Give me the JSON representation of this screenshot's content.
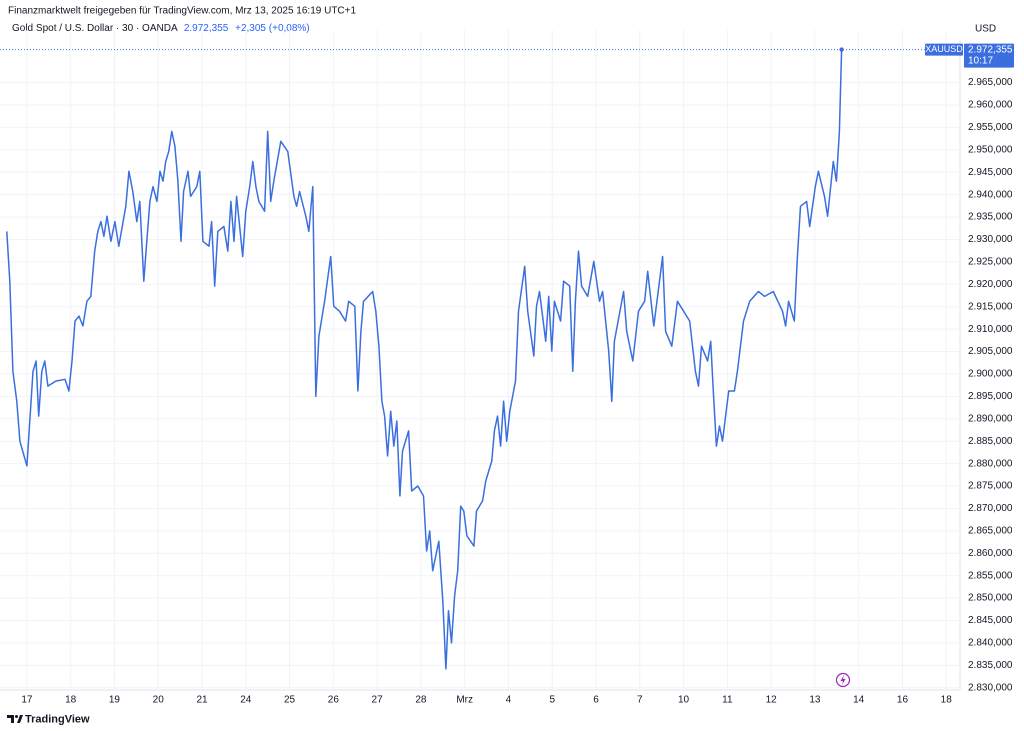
{
  "header": {
    "credit": "Finanzmarktwelt freigegeben für TradingView.com, Mrz 13, 2025 16:19 UTC+1",
    "symbol": "Gold Spot / U.S. Dollar · 30 · OANDA",
    "price": "2.972,355",
    "change": "+2,305 (+0,08%)"
  },
  "chart_data": {
    "type": "line",
    "y_label": "USD",
    "grid": true,
    "xlim": [
      -0.5,
      21.2
    ],
    "xticks": [
      {
        "value": 0,
        "label": "17"
      },
      {
        "value": 1,
        "label": "18"
      },
      {
        "value": 2,
        "label": "19"
      },
      {
        "value": 3,
        "label": "20"
      },
      {
        "value": 4,
        "label": "21"
      },
      {
        "value": 5,
        "label": "24"
      },
      {
        "value": 6,
        "label": "25"
      },
      {
        "value": 7,
        "label": "26"
      },
      {
        "value": 8,
        "label": "27"
      },
      {
        "value": 9,
        "label": "28"
      },
      {
        "value": 10,
        "label": "Mrz"
      },
      {
        "value": 11,
        "label": "4"
      },
      {
        "value": 12,
        "label": "5"
      },
      {
        "value": 13,
        "label": "6"
      },
      {
        "value": 14,
        "label": "7"
      },
      {
        "value": 15,
        "label": "10"
      },
      {
        "value": 16,
        "label": "11"
      },
      {
        "value": 17,
        "label": "12"
      },
      {
        "value": 18,
        "label": "13"
      },
      {
        "value": 19,
        "label": "14"
      },
      {
        "value": 20,
        "label": "16"
      },
      {
        "value": 21,
        "label": "18"
      }
    ],
    "ylim": [
      2829.5,
      2974.5
    ],
    "yticks": [
      {
        "value": 2830,
        "label": "2.830,000"
      },
      {
        "value": 2835,
        "label": "2.835,000"
      },
      {
        "value": 2840,
        "label": "2.840,000"
      },
      {
        "value": 2845,
        "label": "2.845,000"
      },
      {
        "value": 2850,
        "label": "2.850,000"
      },
      {
        "value": 2855,
        "label": "2.855,000"
      },
      {
        "value": 2860,
        "label": "2.860,000"
      },
      {
        "value": 2865,
        "label": "2.865,000"
      },
      {
        "value": 2870,
        "label": "2.870,000"
      },
      {
        "value": 2875,
        "label": "2.875,000"
      },
      {
        "value": 2880,
        "label": "2.880,000"
      },
      {
        "value": 2885,
        "label": "2.885,000"
      },
      {
        "value": 2890,
        "label": "2.890,000"
      },
      {
        "value": 2895,
        "label": "2.895,000"
      },
      {
        "value": 2900,
        "label": "2.900,000"
      },
      {
        "value": 2905,
        "label": "2.905,000"
      },
      {
        "value": 2910,
        "label": "2.910,000"
      },
      {
        "value": 2915,
        "label": "2.915,000"
      },
      {
        "value": 2920,
        "label": "2.920,000"
      },
      {
        "value": 2925,
        "label": "2.925,000"
      },
      {
        "value": 2930,
        "label": "2.930,000"
      },
      {
        "value": 2935,
        "label": "2.935,000"
      },
      {
        "value": 2940,
        "label": "2.940,000"
      },
      {
        "value": 2945,
        "label": "2.945,000"
      },
      {
        "value": 2950,
        "label": "2.950,000"
      },
      {
        "value": 2955,
        "label": "2.955,000"
      },
      {
        "value": 2960,
        "label": "2.960,000"
      },
      {
        "value": 2965,
        "label": "2.965,000"
      }
    ],
    "last_price": {
      "value": 2972.355,
      "label": "2.972,355"
    },
    "countdown": "10:17",
    "series": [
      {
        "name": "XAUUSD",
        "color": "#3b6fe0",
        "x": [
          -0.46,
          -0.39,
          -0.32,
          -0.23,
          -0.16,
          0,
          0.14,
          0.21,
          0.27,
          0.34,
          0.41,
          0.48,
          0.66,
          0.87,
          0.96,
          1.03,
          1.1,
          1.19,
          1.28,
          1.37,
          1.46,
          1.55,
          1.62,
          1.69,
          1.76,
          1.83,
          1.92,
          2.01,
          2.1,
          2.26,
          2.33,
          2.42,
          2.51,
          2.58,
          2.67,
          2.74,
          2.81,
          2.88,
          2.97,
          3.04,
          3.11,
          3.17,
          3.24,
          3.31,
          3.38,
          3.45,
          3.52,
          3.58,
          3.68,
          3.74,
          3.88,
          3.95,
          4.02,
          4.16,
          4.22,
          4.29,
          4.36,
          4.5,
          4.59,
          4.66,
          4.73,
          4.79,
          4.93,
          5,
          5.09,
          5.16,
          5.23,
          5.3,
          5.43,
          5.5,
          5.57,
          5.64,
          5.8,
          5.96,
          6.1,
          6.16,
          6.23,
          6.37,
          6.44,
          6.53,
          6.6,
          6.67,
          6.8,
          6.94,
          7.01,
          7.14,
          7.28,
          7.35,
          7.49,
          7.56,
          7.63,
          7.69,
          7.9,
          7.97,
          8.04,
          8.11,
          8.17,
          8.24,
          8.31,
          8.38,
          8.45,
          8.52,
          8.58,
          8.72,
          8.79,
          8.93,
          9.06,
          9.13,
          9.2,
          9.27,
          9.41,
          9.5,
          9.57,
          9.63,
          9.7,
          9.77,
          9.84,
          9.91,
          9.98,
          10.05,
          10.21,
          10.27,
          10.41,
          10.48,
          10.62,
          10.68,
          10.75,
          10.82,
          10.89,
          10.96,
          11.03,
          11.16,
          11.23,
          11.37,
          11.44,
          11.58,
          11.64,
          11.71,
          11.85,
          11.92,
          11.99,
          12.05,
          12.19,
          12.26,
          12.4,
          12.47,
          12.53,
          12.6,
          12.67,
          12.81,
          12.95,
          13.08,
          13.15,
          13.29,
          13.36,
          13.42,
          13.63,
          13.7,
          13.84,
          13.97,
          14.11,
          14.18,
          14.32,
          14.45,
          14.52,
          14.59,
          14.73,
          14.86,
          15,
          15.14,
          15.27,
          15.34,
          15.41,
          15.55,
          15.62,
          15.68,
          15.75,
          15.82,
          15.89,
          16.03,
          16.16,
          16.23,
          16.37,
          16.51,
          16.71,
          16.85,
          17.05,
          17.26,
          17.33,
          17.4,
          17.53,
          17.6,
          17.67,
          17.81,
          17.88,
          18.01,
          18.08,
          18.22,
          18.29,
          18.42,
          18.49,
          18.56,
          18.61
        ],
        "values": [
          2931.8,
          2920.7,
          2900.6,
          2893.9,
          2885,
          2879.5,
          2900.6,
          2902.9,
          2890.6,
          2900.6,
          2902.9,
          2897.3,
          2898.4,
          2898.8,
          2896.2,
          2902.9,
          2911.8,
          2912.9,
          2910.7,
          2916.2,
          2917.3,
          2927.4,
          2931.8,
          2934,
          2930.7,
          2935.2,
          2929.6,
          2934,
          2928.5,
          2937.4,
          2945.2,
          2940.7,
          2934,
          2938.5,
          2920.7,
          2929.6,
          2938.5,
          2941.8,
          2938.5,
          2945.2,
          2943,
          2947.4,
          2949.6,
          2954.1,
          2950.8,
          2943,
          2929.6,
          2940.7,
          2945.2,
          2939.6,
          2941.8,
          2945.2,
          2929.6,
          2928.5,
          2934,
          2919.6,
          2931.8,
          2932.9,
          2927.4,
          2938.5,
          2929.6,
          2939.6,
          2926.2,
          2936.3,
          2941.8,
          2947.4,
          2941.8,
          2938.5,
          2936.3,
          2954.1,
          2938.5,
          2943,
          2951.9,
          2949.6,
          2939.6,
          2937.4,
          2940.7,
          2935.2,
          2931.8,
          2941.8,
          2895,
          2908.4,
          2916.2,
          2926.2,
          2915.1,
          2914,
          2911.8,
          2916.2,
          2915.1,
          2896.2,
          2909.5,
          2916.2,
          2918.4,
          2914,
          2906.2,
          2893.9,
          2890.6,
          2881.7,
          2891.7,
          2883.9,
          2889.5,
          2872.8,
          2882.8,
          2887.3,
          2873.9,
          2875,
          2872.8,
          2860.5,
          2865,
          2856.1,
          2862.7,
          2849.4,
          2834.2,
          2847.2,
          2840,
          2850.5,
          2856.1,
          2870.5,
          2869.4,
          2863.9,
          2861.6,
          2869.4,
          2871.7,
          2876.1,
          2880.6,
          2887.3,
          2890.6,
          2883.9,
          2893.9,
          2885,
          2891.7,
          2898.4,
          2914,
          2924,
          2914,
          2904,
          2915.1,
          2918.4,
          2907.3,
          2917.3,
          2905.1,
          2916.2,
          2911.8,
          2920.7,
          2919.6,
          2900.6,
          2916.2,
          2927.4,
          2919.6,
          2917.3,
          2925.1,
          2916.2,
          2918.4,
          2905.1,
          2893.9,
          2907.3,
          2918.4,
          2909.5,
          2902.9,
          2914,
          2916.2,
          2922.9,
          2910.7,
          2920.7,
          2926.2,
          2909.5,
          2906.2,
          2916.2,
          2914,
          2911.8,
          2900.6,
          2897.3,
          2906.2,
          2902.9,
          2907.3,
          2896.2,
          2883.9,
          2888.4,
          2885,
          2896.2,
          2896.2,
          2900.6,
          2911.8,
          2916.2,
          2918.4,
          2917.3,
          2918.4,
          2914,
          2910.7,
          2916.2,
          2911.8,
          2926.2,
          2937.4,
          2938.5,
          2932.9,
          2941.8,
          2945.2,
          2939.6,
          2935.2,
          2947.4,
          2943,
          2954.1,
          2972.355
        ]
      }
    ]
  },
  "footer": {
    "brand": "TradingView"
  }
}
